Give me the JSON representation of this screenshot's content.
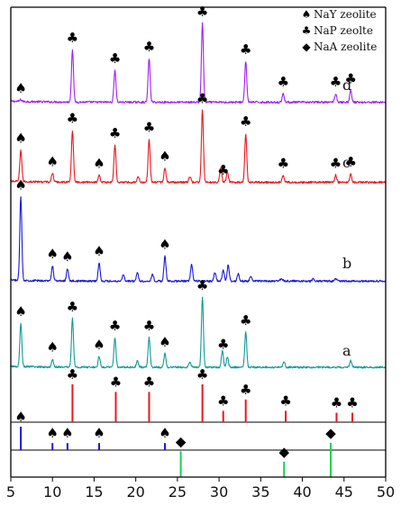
{
  "chart_data": {
    "type": "line",
    "xlim": [
      5,
      50
    ],
    "x_ticks": [
      5,
      10,
      15,
      20,
      25,
      30,
      35,
      40,
      45,
      50
    ],
    "marker_glyphs": {
      "NaY": "♠",
      "NaP": "♣",
      "NaA": "◆"
    },
    "legend": [
      {
        "glyph": "♠",
        "label": "NaY zeolite"
      },
      {
        "glyph": "♣",
        "label": "NaP zeolte"
      },
      {
        "glyph": "◆",
        "label": "NaA zeolite"
      }
    ],
    "series": [
      {
        "name": "d",
        "color": "#a020f0",
        "baseline": 0.75,
        "peaks": [
          [
            6.2,
            0.6
          ],
          [
            12.4,
            18
          ],
          [
            17.5,
            11
          ],
          [
            21.6,
            15
          ],
          [
            28.0,
            27
          ],
          [
            33.2,
            14
          ],
          [
            37.7,
            3
          ],
          [
            44.0,
            3
          ],
          [
            45.8,
            4
          ]
        ],
        "markers": [
          {
            "x": 6.2,
            "type": "NaY"
          },
          {
            "x": 12.4,
            "type": "NaP"
          },
          {
            "x": 17.5,
            "type": "NaP"
          },
          {
            "x": 21.6,
            "type": "NaP"
          },
          {
            "x": 28.0,
            "type": "NaP"
          },
          {
            "x": 33.2,
            "type": "NaP"
          },
          {
            "x": 37.7,
            "type": "NaP"
          },
          {
            "x": 44.0,
            "type": "NaP"
          },
          {
            "x": 45.8,
            "type": "NaP"
          }
        ]
      },
      {
        "name": "c",
        "color": "#e8181e",
        "baseline": 1.1,
        "peaks": [
          [
            6.2,
            11
          ],
          [
            10.0,
            3
          ],
          [
            12.4,
            18
          ],
          [
            15.6,
            2.5
          ],
          [
            17.5,
            13
          ],
          [
            20.3,
            2
          ],
          [
            21.6,
            15
          ],
          [
            23.5,
            5
          ],
          [
            26.5,
            2
          ],
          [
            28.0,
            25
          ],
          [
            30.2,
            5
          ],
          [
            31.0,
            3.5
          ],
          [
            33.2,
            17
          ],
          [
            37.7,
            2.5
          ],
          [
            44.0,
            2.5
          ],
          [
            45.8,
            3
          ]
        ],
        "markers": [
          {
            "x": 6.2,
            "type": "NaY"
          },
          {
            "x": 10.0,
            "type": "NaY"
          },
          {
            "x": 12.4,
            "type": "NaP"
          },
          {
            "x": 15.6,
            "type": "NaY"
          },
          {
            "x": 17.5,
            "type": "NaP"
          },
          {
            "x": 21.6,
            "type": "NaP"
          },
          {
            "x": 23.5,
            "type": "NaY"
          },
          {
            "x": 28.0,
            "type": "NaP"
          },
          {
            "x": 30.5,
            "type": "NaP"
          },
          {
            "x": 33.2,
            "type": "NaP"
          },
          {
            "x": 37.7,
            "type": "NaP"
          },
          {
            "x": 44.0,
            "type": "NaP"
          },
          {
            "x": 45.8,
            "type": "NaP"
          }
        ]
      },
      {
        "name": "b",
        "color": "#1818dc",
        "baseline": 0.55,
        "peaks": [
          [
            6.2,
            30
          ],
          [
            10.0,
            5.5
          ],
          [
            11.8,
            4.5
          ],
          [
            15.6,
            6.5
          ],
          [
            18.5,
            2.5
          ],
          [
            20.2,
            3
          ],
          [
            22.0,
            2.5
          ],
          [
            23.5,
            9
          ],
          [
            26.7,
            6
          ],
          [
            29.5,
            3
          ],
          [
            30.5,
            4
          ],
          [
            31.1,
            6
          ],
          [
            32.3,
            2.5
          ],
          [
            33.8,
            1.8
          ],
          [
            37.5,
            1
          ],
          [
            41.3,
            0.8
          ],
          [
            44.0,
            0.8
          ]
        ],
        "markers": [
          {
            "x": 6.2,
            "type": "NaY"
          },
          {
            "x": 10.0,
            "type": "NaY"
          },
          {
            "x": 11.8,
            "type": "NaY"
          },
          {
            "x": 15.6,
            "type": "NaY"
          },
          {
            "x": 23.5,
            "type": "NaY"
          }
        ]
      },
      {
        "name": "a",
        "color": "#129a98",
        "baseline": 1.0,
        "peaks": [
          [
            6.2,
            16
          ],
          [
            10.0,
            3
          ],
          [
            12.4,
            18
          ],
          [
            15.6,
            4
          ],
          [
            17.5,
            11
          ],
          [
            20.2,
            2.5
          ],
          [
            21.6,
            11
          ],
          [
            23.5,
            5
          ],
          [
            26.5,
            2
          ],
          [
            28.0,
            26
          ],
          [
            30.4,
            6
          ],
          [
            31.0,
            4
          ],
          [
            33.2,
            13
          ],
          [
            37.8,
            2
          ],
          [
            45.8,
            2.5
          ]
        ],
        "markers": [
          {
            "x": 6.2,
            "type": "NaY"
          },
          {
            "x": 10.0,
            "type": "NaY"
          },
          {
            "x": 12.4,
            "type": "NaP"
          },
          {
            "x": 15.6,
            "type": "NaY"
          },
          {
            "x": 17.5,
            "type": "NaP"
          },
          {
            "x": 21.6,
            "type": "NaP"
          },
          {
            "x": 23.5,
            "type": "NaY"
          },
          {
            "x": 28.0,
            "type": "NaP"
          },
          {
            "x": 30.5,
            "type": "NaP"
          },
          {
            "x": 33.2,
            "type": "NaP"
          }
        ]
      }
    ],
    "reference_patterns": [
      {
        "phase": "NaP",
        "color": "#e8181e",
        "lines": [
          [
            12.4,
            1.0
          ],
          [
            17.6,
            0.8
          ],
          [
            21.6,
            0.8
          ],
          [
            28.0,
            1.0
          ],
          [
            30.5,
            0.3
          ],
          [
            33.2,
            0.6
          ],
          [
            38.0,
            0.3
          ],
          [
            44.1,
            0.25
          ],
          [
            46.0,
            0.25
          ]
        ]
      },
      {
        "phase": "NaY",
        "color": "#1818dc",
        "lines": [
          [
            6.2,
            1.0
          ],
          [
            10.0,
            0.3
          ],
          [
            11.8,
            0.3
          ],
          [
            15.6,
            0.3
          ],
          [
            23.5,
            0.3
          ]
        ]
      },
      {
        "phase": "NaA",
        "color": "#18d24a",
        "lines": [
          [
            25.4,
            0.75
          ],
          [
            37.8,
            0.45
          ],
          [
            43.4,
            1.0
          ]
        ]
      }
    ]
  }
}
